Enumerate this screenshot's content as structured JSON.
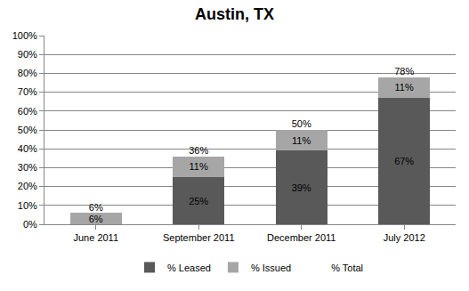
{
  "chart_data": {
    "type": "bar",
    "title": "Austin, TX",
    "stacked": true,
    "grid": true,
    "legend": "bottom",
    "data_labels": true,
    "categories": [
      "June 2011",
      "September 2011",
      "December 2011",
      "July 2012"
    ],
    "series": [
      {
        "name": "% Leased",
        "color": "#595959",
        "values": [
          null,
          25,
          39,
          67
        ],
        "value_labels": [
          null,
          "25%",
          "39%",
          "67%"
        ]
      },
      {
        "name": "% Issued",
        "color": "#a6a6a6",
        "values": [
          6,
          11,
          11,
          11
        ],
        "value_labels": [
          "6%",
          "11%",
          "11%",
          "11%"
        ]
      },
      {
        "name": "% Total",
        "type": "scatter",
        "marker": "none",
        "values": [
          6,
          36,
          50,
          78
        ],
        "value_labels": [
          "6%",
          "36%",
          "50%",
          "78%"
        ]
      }
    ],
    "ylim": [
      0,
      100
    ],
    "yticks": [
      {
        "value": 0,
        "label": "0%"
      },
      {
        "value": 10,
        "label": "10%"
      },
      {
        "value": 20,
        "label": "20%"
      },
      {
        "value": 30,
        "label": "30%"
      },
      {
        "value": 40,
        "label": "40%"
      },
      {
        "value": 50,
        "label": "50%"
      },
      {
        "value": 60,
        "label": "60%"
      },
      {
        "value": 70,
        "label": "70%"
      },
      {
        "value": 80,
        "label": "80%"
      },
      {
        "value": 90,
        "label": "90%"
      },
      {
        "value": 100,
        "label": "100%"
      }
    ]
  }
}
